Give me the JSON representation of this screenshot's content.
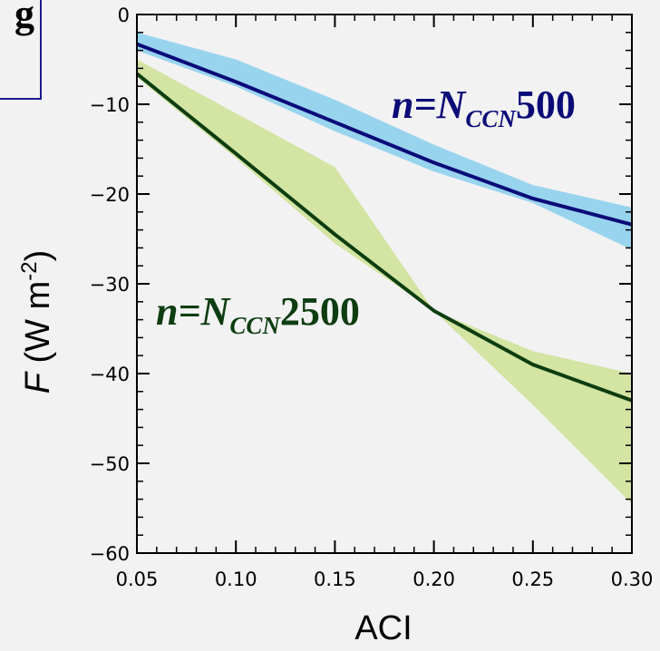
{
  "chart_data": {
    "type": "line",
    "xlabel": "ACI",
    "ylabel": {
      "italic": "F",
      "text": " (W m",
      "sup": "-2",
      "close": ")"
    },
    "xlim": [
      0.05,
      0.3
    ],
    "ylim": [
      -60,
      0
    ],
    "xticks": [
      0.05,
      0.1,
      0.15,
      0.2,
      0.25,
      0.3
    ],
    "xtick_labels": [
      "0.05",
      "0.10",
      "0.15",
      "0.20",
      "0.25",
      "0.30"
    ],
    "yticks": [
      0,
      -10,
      -20,
      -30,
      -40,
      -50,
      -60
    ],
    "ytick_labels": [
      "0",
      "−10",
      "−20",
      "−30",
      "−40",
      "−50",
      "−60"
    ],
    "grid": false,
    "series": [
      {
        "label_prefix": "n=N",
        "label_sub": "CCN",
        "label_suffix": "500",
        "color": "#0b0b78",
        "band_color": "#8fd0ee",
        "x": [
          0.05,
          0.1,
          0.15,
          0.2,
          0.25,
          0.3
        ],
        "values": [
          -3.3,
          -7.5,
          -12.0,
          -16.5,
          -20.5,
          -23.4
        ],
        "band_upper": [
          -2.0,
          -5.0,
          -9.5,
          -14.5,
          -19.0,
          -21.5
        ],
        "band_lower": [
          -4.0,
          -8.0,
          -13.0,
          -17.5,
          -21.0,
          -26.2
        ]
      },
      {
        "label_prefix": "n=N",
        "label_sub": "CCN",
        "label_suffix": "2500",
        "color": "#0d3d10",
        "band_color": "#cfe29a",
        "x": [
          0.05,
          0.1,
          0.15,
          0.2,
          0.25,
          0.3
        ],
        "values": [
          -6.6,
          -15.5,
          -24.5,
          -33.0,
          -39.0,
          -43.0
        ],
        "band_upper": [
          -5.0,
          -11.0,
          -17.0,
          -33.0,
          -37.5,
          -40.0
        ],
        "band_lower": [
          -7.0,
          -16.0,
          -25.5,
          -33.0,
          -43.5,
          -54.5
        ]
      }
    ]
  },
  "legend_glyph": "g",
  "colors": {
    "legend_border": "#1a1a8c",
    "axis": "#000000",
    "background": "#f2f2f2"
  }
}
